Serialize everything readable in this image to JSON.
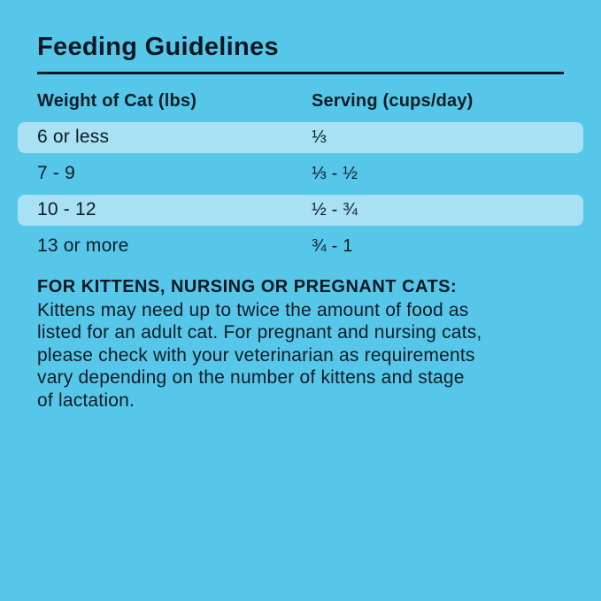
{
  "colors": {
    "background": "#57C7E9",
    "row_highlight": "#A7E1F3",
    "text": "#0D1C26"
  },
  "title": "Feeding Guidelines",
  "table": {
    "headers": {
      "weight": "Weight of Cat (lbs)",
      "serving": "Serving (cups/day)"
    },
    "rows": [
      {
        "weight": "6 or less",
        "serving": "⅓",
        "highlighted": true
      },
      {
        "weight": "7 - 9",
        "serving": "⅓ - ½",
        "highlighted": false
      },
      {
        "weight": "10 - 12",
        "serving": "½ - ¾",
        "highlighted": true
      },
      {
        "weight": "13 or more",
        "serving": "¾ - 1",
        "highlighted": false
      }
    ]
  },
  "note": {
    "heading": "FOR KITTENS, NURSING OR PREGNANT CATS:",
    "body_lines": [
      "Kittens may need up to twice the amount of food as",
      "listed for an adult cat. For pregnant and nursing cats,",
      "please check with your veterinarian as requirements",
      "vary depending on the number of kittens and stage",
      "of lactation."
    ]
  }
}
